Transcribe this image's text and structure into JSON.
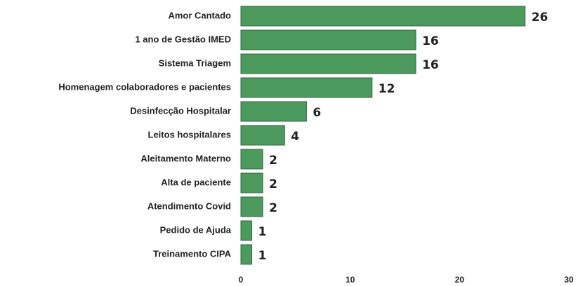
{
  "chart_data": {
    "type": "bar",
    "orientation": "horizontal",
    "categories": [
      "Amor Cantado",
      "1 ano de Gestão IMED",
      "Sistema Triagem",
      "Homenagem colaboradores e pacientes",
      "Desinfecção Hospitalar",
      "Leitos hospitalares",
      "Aleitamento Materno",
      "Alta de paciente",
      "Atendimento Covid",
      "Pedido de Ajuda",
      "Treinamento CIPA"
    ],
    "values": [
      26,
      16,
      16,
      12,
      6,
      4,
      2,
      2,
      2,
      1,
      1
    ],
    "color": "#4c9a5e",
    "xlim": [
      0,
      30
    ],
    "xticks": [
      0,
      10,
      20,
      30
    ]
  }
}
